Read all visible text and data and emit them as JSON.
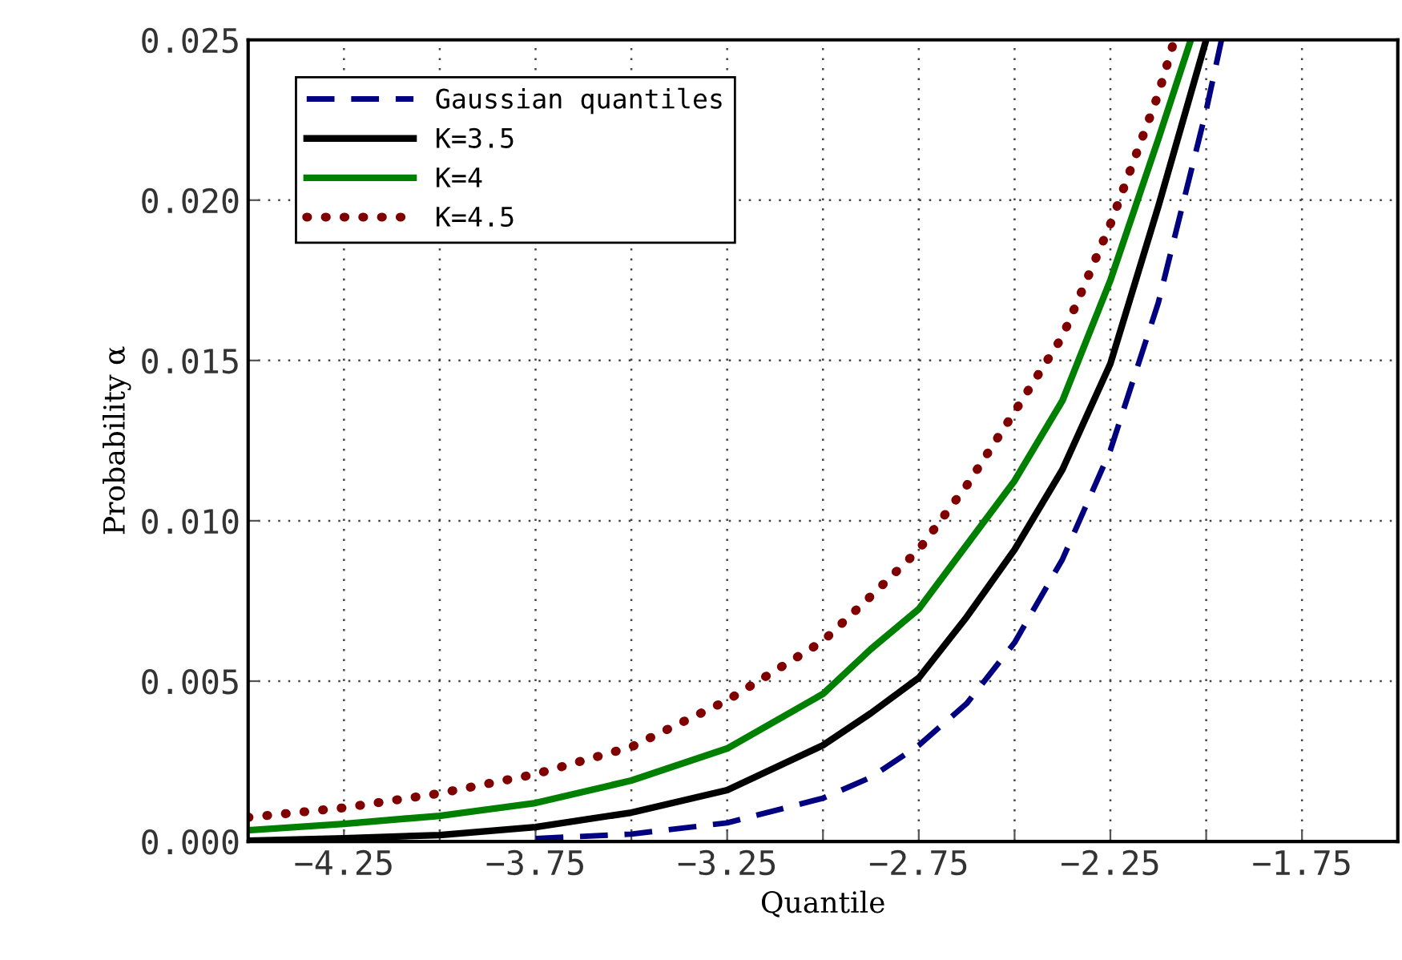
{
  "chart_data": {
    "type": "line",
    "xlabel": "Quantile",
    "ylabel": "Probability α",
    "xlim": [
      -4.5,
      -1.5
    ],
    "ylim": [
      0,
      0.025
    ],
    "xticks": [
      {
        "value": -4.25,
        "label": "−4.25"
      },
      {
        "value": -4.0,
        "label": null
      },
      {
        "value": -3.75,
        "label": "−3.75"
      },
      {
        "value": -3.5,
        "label": null
      },
      {
        "value": -3.25,
        "label": "−3.25"
      },
      {
        "value": -3.0,
        "label": null
      },
      {
        "value": -2.75,
        "label": "−2.75"
      },
      {
        "value": -2.5,
        "label": null
      },
      {
        "value": -2.25,
        "label": "−2.25"
      },
      {
        "value": -2.0,
        "label": null
      },
      {
        "value": -1.75,
        "label": "−1.75"
      }
    ],
    "yticks": [
      {
        "value": 0,
        "label": "0.000"
      },
      {
        "value": 0.005,
        "label": "0.005"
      },
      {
        "value": 0.01,
        "label": "0.010"
      },
      {
        "value": 0.015,
        "label": "0.015"
      },
      {
        "value": 0.02,
        "label": "0.020"
      },
      {
        "value": 0.025,
        "label": "0.025"
      }
    ],
    "grid": true,
    "legend": "top left",
    "series": [
      {
        "name": "Gaussian quantiles",
        "color": "#000080",
        "line_style": "dashed",
        "x": [
          -3.75,
          -3.5,
          -3.25,
          -3.0,
          -2.875,
          -2.75,
          -2.625,
          -2.5,
          -2.375,
          -2.25,
          -2.125,
          -2.0,
          -1.96
        ],
        "values": [
          9e-05,
          0.00023,
          0.00058,
          0.00135,
          0.002,
          0.003,
          0.0043,
          0.0062,
          0.0088,
          0.0122,
          0.0168,
          0.0228,
          0.025
        ]
      },
      {
        "name": "K=3.5",
        "color": "#000000",
        "line_style": "solid",
        "x": [
          -4.5,
          -4.25,
          -4.0,
          -3.75,
          -3.5,
          -3.25,
          -3.0,
          -2.875,
          -2.75,
          -2.625,
          -2.5,
          -2.375,
          -2.25,
          -2.125,
          -2.0
        ],
        "values": [
          2e-05,
          0.0001,
          0.0002,
          0.00045,
          0.0009,
          0.0016,
          0.003,
          0.004,
          0.0051,
          0.007,
          0.0091,
          0.0116,
          0.0149,
          0.0198,
          0.025
        ]
      },
      {
        "name": "K=4",
        "color": "#008000",
        "line_style": "solid",
        "x": [
          -4.5,
          -4.25,
          -4.0,
          -3.75,
          -3.5,
          -3.25,
          -3.0,
          -2.875,
          -2.75,
          -2.625,
          -2.5,
          -2.375,
          -2.25,
          -2.125,
          -2.04
        ],
        "values": [
          0.00035,
          0.00055,
          0.0008,
          0.0012,
          0.0019,
          0.0029,
          0.0046,
          0.006,
          0.00725,
          0.00925,
          0.01125,
          0.01375,
          0.0175,
          0.0219,
          0.025
        ]
      },
      {
        "name": "K=4.5",
        "color": "#800000",
        "line_style": "dotted",
        "x": [
          -4.5,
          -4.25,
          -4.0,
          -3.75,
          -3.5,
          -3.25,
          -3.0,
          -2.875,
          -2.75,
          -2.625,
          -2.5,
          -2.375,
          -2.25,
          -2.125,
          -2.083
        ],
        "values": [
          0.00075,
          0.00105,
          0.0015,
          0.0021,
          0.00295,
          0.0044,
          0.00625,
          0.00765,
          0.0091,
          0.0111,
          0.0134,
          0.01575,
          0.01925,
          0.0233,
          0.025
        ]
      }
    ]
  }
}
